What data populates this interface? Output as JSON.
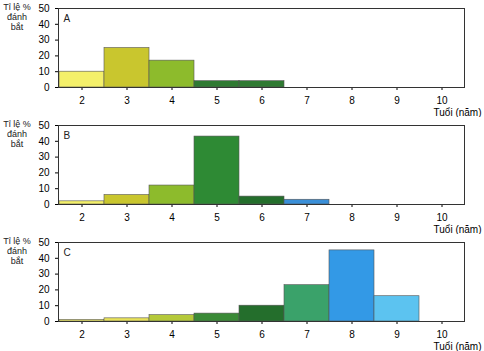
{
  "chart_data": [
    {
      "type": "bar",
      "title": "A",
      "categories": [
        2,
        3,
        4,
        5,
        6,
        7,
        8,
        9,
        10
      ],
      "values": [
        10,
        25,
        17,
        4,
        4,
        null,
        null,
        null,
        null
      ],
      "colors": [
        "#f4f06a",
        "#c9c62e",
        "#8dbb2c",
        "#2f7a32",
        "#2f7a32",
        null,
        null,
        null,
        null
      ],
      "x_label": "Tuổi (năm)",
      "y_label": "Tỉ lệ % đánh bắt",
      "ylim": [
        0,
        50
      ],
      "yticks": [
        0,
        10,
        20,
        30,
        40,
        50
      ]
    },
    {
      "type": "bar",
      "title": "B",
      "categories": [
        2,
        3,
        4,
        5,
        6,
        7,
        8,
        9,
        10
      ],
      "values": [
        2,
        6,
        12,
        43,
        5,
        3,
        null,
        null,
        null
      ],
      "colors": [
        "#f4f06a",
        "#c9c62e",
        "#8dbb2c",
        "#2e8a34",
        "#246e2c",
        "#3a8fd8",
        null,
        null,
        null
      ],
      "x_label": "Tuổi (năm)",
      "y_label": "Tỉ lệ % đánh bắt",
      "ylim": [
        0,
        50
      ],
      "yticks": [
        0,
        10,
        20,
        30,
        40,
        50
      ]
    },
    {
      "type": "bar",
      "title": "C",
      "categories": [
        2,
        3,
        4,
        5,
        6,
        7,
        8,
        9,
        10
      ],
      "values": [
        1,
        2,
        4,
        5,
        10,
        23,
        45,
        16,
        null
      ],
      "colors": [
        "#f4f06a",
        "#e8e25a",
        "#b5c93a",
        "#3a8a36",
        "#246e2c",
        "#3aa26a",
        "#3399e6",
        "#5cc3f0",
        null
      ],
      "x_label": "Tuổi (năm)",
      "y_label": "Tỉ lệ % đánh bắt",
      "ylim": [
        0,
        50
      ],
      "yticks": [
        0,
        10,
        20,
        30,
        40,
        50
      ]
    }
  ]
}
